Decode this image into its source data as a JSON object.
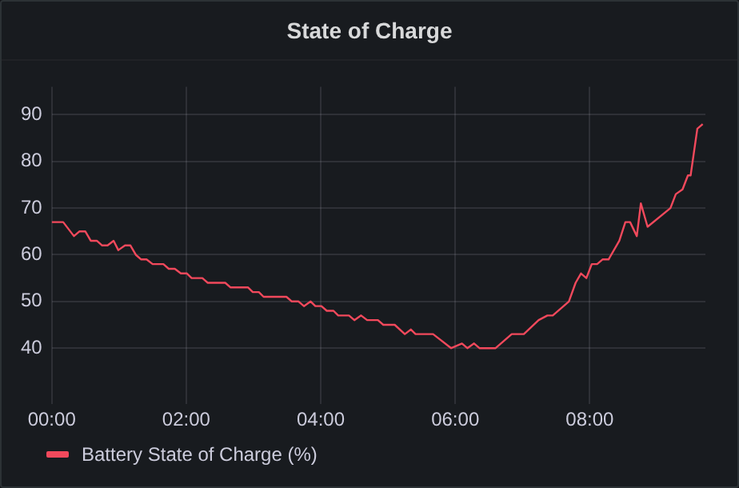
{
  "chart_data": {
    "type": "line",
    "title": "State of Charge",
    "x": [
      0,
      0.17,
      0.33,
      0.41,
      0.5,
      0.58,
      0.67,
      0.75,
      0.83,
      0.92,
      0.99,
      1.09,
      1.17,
      1.25,
      1.33,
      1.41,
      1.5,
      1.66,
      1.74,
      1.83,
      1.92,
      2.01,
      2.08,
      2.24,
      2.32,
      2.58,
      2.66,
      2.92,
      2.99,
      3.08,
      3.15,
      3.49,
      3.57,
      3.67,
      3.75,
      3.85,
      3.92,
      4.01,
      4.09,
      4.19,
      4.26,
      4.42,
      4.5,
      4.6,
      4.69,
      4.85,
      4.93,
      5.1,
      5.25,
      5.34,
      5.41,
      5.67,
      5.94,
      6.1,
      6.18,
      6.28,
      6.36,
      6.6,
      6.84,
      7.02,
      7.24,
      7.37,
      7.45,
      7.69,
      7.79,
      7.87,
      7.95,
      8.03,
      8.11,
      8.19,
      8.28,
      8.44,
      8.53,
      8.6,
      8.7,
      8.76,
      8.86,
      9.2,
      9.28,
      9.38,
      9.46,
      9.5,
      9.6,
      9.68
    ],
    "series": [
      {
        "name": "Battery State of Charge (%)",
        "color": "#f2495c",
        "values": [
          67,
          67,
          64,
          65,
          65,
          63,
          63,
          62,
          62,
          63,
          61,
          62,
          62,
          60,
          59,
          59,
          58,
          58,
          57,
          57,
          56,
          56,
          55,
          55,
          54,
          54,
          53,
          53,
          52,
          52,
          51,
          51,
          50,
          50,
          49,
          50,
          49,
          49,
          48,
          48,
          47,
          47,
          46,
          47,
          46,
          46,
          45,
          45,
          43,
          44,
          43,
          43,
          40,
          41,
          40,
          41,
          40,
          40,
          43,
          43,
          46,
          47,
          47,
          50,
          54,
          56,
          55,
          58,
          58,
          59,
          59,
          63,
          67,
          67,
          64,
          71,
          66,
          70,
          73,
          74,
          77,
          77,
          87,
          88
        ]
      }
    ],
    "xlim": [
      0,
      9.72
    ],
    "xticks": [
      {
        "value": 0,
        "label": "00:00"
      },
      {
        "value": 2,
        "label": "02:00"
      },
      {
        "value": 4,
        "label": "04:00"
      },
      {
        "value": 6,
        "label": "06:00"
      },
      {
        "value": 8,
        "label": "08:00"
      }
    ],
    "ylim": [
      28,
      96
    ],
    "yticks": [
      40,
      50,
      60,
      70,
      80,
      90
    ],
    "grid": true,
    "legend": "bottom left",
    "marker": "none",
    "line_style": "solid"
  }
}
